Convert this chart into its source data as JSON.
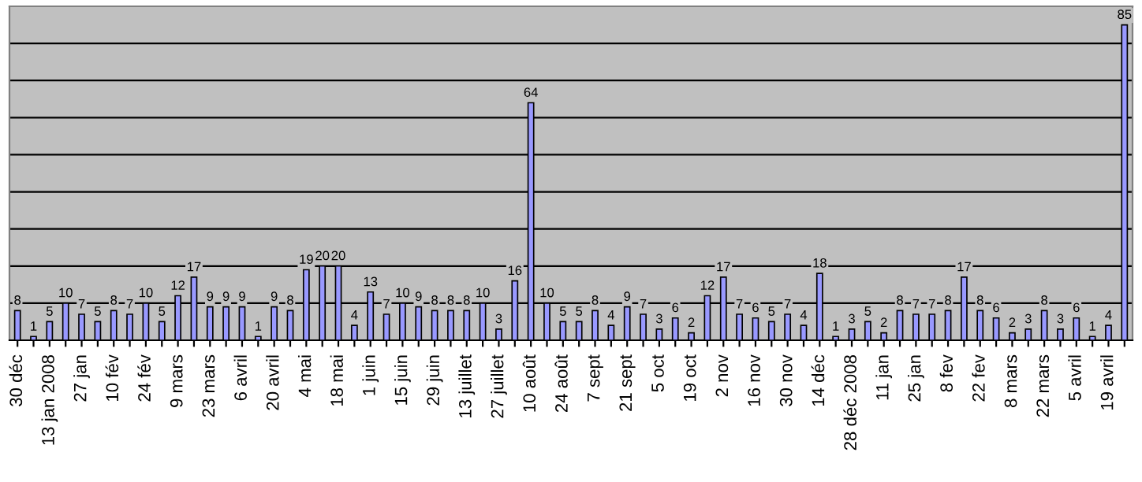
{
  "chart_data": {
    "type": "bar",
    "categories": [
      "30 déc",
      null,
      "13 jan 2008",
      null,
      "27 jan",
      null,
      "10 fév",
      null,
      "24 fév",
      null,
      "9 mars",
      null,
      "23 mars",
      null,
      "6 avril",
      null,
      "20 avril",
      null,
      "4 mai",
      null,
      "18 mai",
      null,
      "1 juin",
      null,
      "15 juin",
      null,
      "29 juin",
      null,
      "13 juillet",
      null,
      "27 juillet",
      null,
      "10 août",
      null,
      "24 août",
      null,
      "7 sept",
      null,
      "21 sept",
      null,
      "5 oct",
      null,
      "19 oct",
      null,
      "2 nov",
      null,
      "16 nov",
      null,
      "30 nov",
      null,
      "14 déc",
      null,
      "28 déc 2008",
      null,
      "11 jan",
      null,
      "25 jan",
      null,
      "8 fev",
      null,
      "22 fev",
      null,
      "8 mars",
      null,
      "22 mars",
      null,
      "5 avril",
      null,
      "19 avril",
      null
    ],
    "values": [
      8,
      1,
      5,
      10,
      7,
      5,
      8,
      7,
      10,
      5,
      12,
      17,
      9,
      9,
      9,
      1,
      9,
      8,
      19,
      20,
      20,
      4,
      13,
      7,
      10,
      9,
      8,
      8,
      8,
      10,
      3,
      16,
      64,
      10,
      5,
      5,
      8,
      4,
      9,
      7,
      3,
      6,
      2,
      12,
      17,
      7,
      6,
      5,
      7,
      4,
      18,
      1,
      3,
      5,
      2,
      8,
      7,
      7,
      8,
      17,
      8,
      6,
      2,
      3,
      8,
      3,
      6,
      1,
      4,
      85
    ],
    "color": "#9999ff",
    "ylim": [
      0,
      90
    ],
    "yticks": [
      {
        "value": 0,
        "label": null
      },
      {
        "value": 10,
        "label": null
      },
      {
        "value": 20,
        "label": null
      },
      {
        "value": 30,
        "label": null
      },
      {
        "value": 40,
        "label": null
      },
      {
        "value": 50,
        "label": null
      },
      {
        "value": 60,
        "label": null
      },
      {
        "value": 70,
        "label": null
      },
      {
        "value": 80,
        "label": null
      },
      {
        "value": 90,
        "label": null
      }
    ],
    "grid": "y",
    "tick_labels": "x",
    "data_labels": true
  }
}
